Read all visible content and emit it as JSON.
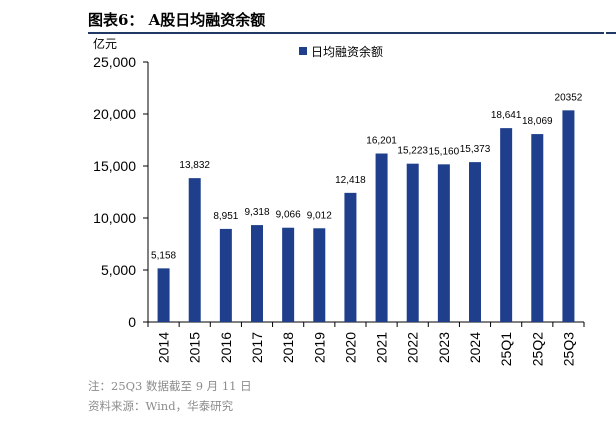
{
  "figure": {
    "title": "图表6：  A股日均融资余额"
  },
  "footnotes": {
    "note": "注：25Q3 数据截至 9 月 11 日",
    "source": "资料来源：Wind，华泰研究"
  },
  "colors": {
    "bar": "#1f3f8c",
    "axis": "#000000",
    "header_rule": "#1f3864"
  },
  "chart_data": {
    "type": "bar",
    "unit_label": "亿元",
    "legend": "日均融资余额",
    "legend_position": "top-left",
    "categories": [
      "2014",
      "2015",
      "2016",
      "2017",
      "2018",
      "2019",
      "2020",
      "2021",
      "2022",
      "2023",
      "2024",
      "25Q1",
      "25Q2",
      "25Q3"
    ],
    "values": [
      5158,
      13832,
      8951,
      9318,
      9066,
      9012,
      12418,
      16201,
      15223,
      15160,
      15373,
      18641,
      18069,
      20352
    ],
    "value_labels": [
      "5,158",
      "13,832",
      "8,951",
      "9,318",
      "9,066",
      "9,012",
      "12,418",
      "16,201",
      "15,223",
      "15,160",
      "15,373",
      "18,641",
      "18,069",
      "20352"
    ],
    "yticks": [
      0,
      5000,
      10000,
      15000,
      20000,
      25000
    ],
    "ytick_labels": [
      "0",
      "5,000",
      "10,000",
      "15,000",
      "20,000",
      "25,000"
    ],
    "ylim": [
      0,
      25000
    ],
    "grid": false
  }
}
